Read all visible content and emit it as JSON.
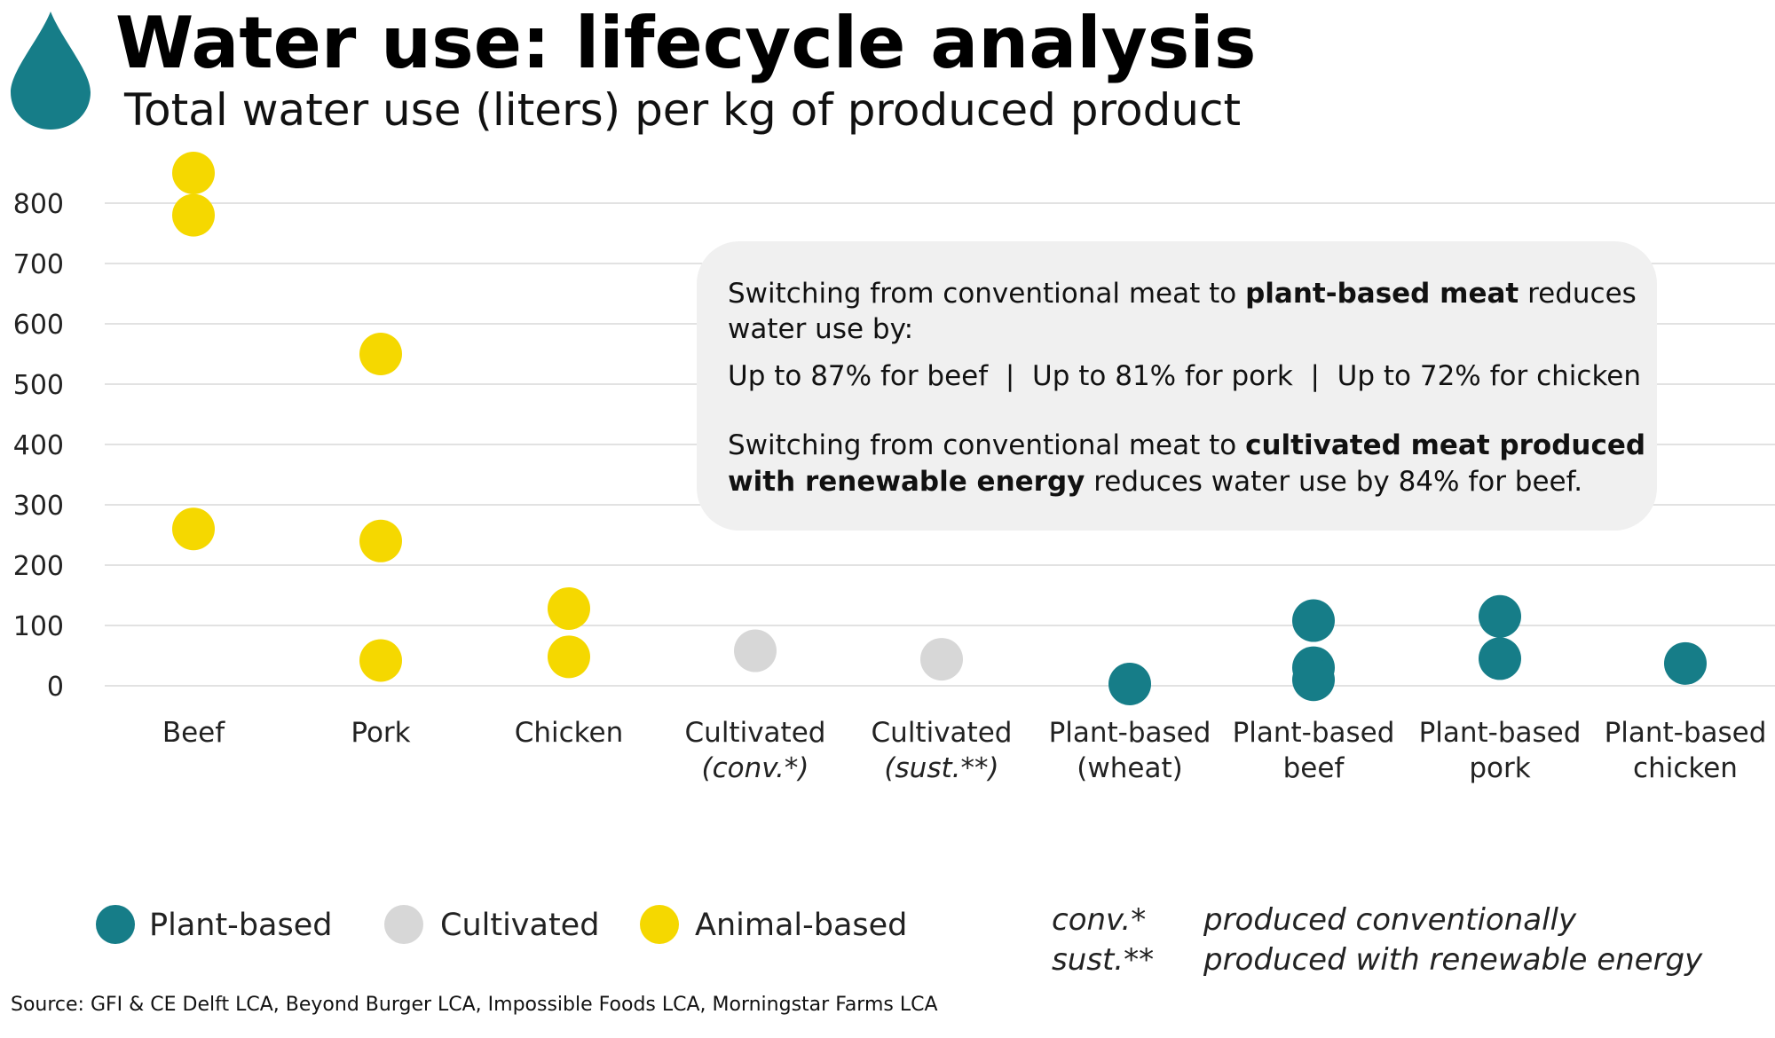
{
  "chart_data": {
    "type": "scatter",
    "title": "Water use: lifecycle analysis",
    "subtitle": "Total water use (liters) per kg of produced product",
    "ylabel": "",
    "xlabel": "",
    "ylim": [
      0,
      800
    ],
    "y_ticks": [
      0,
      100,
      200,
      300,
      400,
      500,
      600,
      700,
      800
    ],
    "grid": true,
    "categories": [
      {
        "line1": "Beef",
        "line2": "",
        "italic2": false
      },
      {
        "line1": "Pork",
        "line2": "",
        "italic2": false
      },
      {
        "line1": "Chicken",
        "line2": "",
        "italic2": false
      },
      {
        "line1": "Cultivated",
        "line2": "(conv.*)",
        "italic2": true
      },
      {
        "line1": "Cultivated",
        "line2": "(sust.**)",
        "italic2": true
      },
      {
        "line1": "Plant-based",
        "line2": "(wheat)",
        "italic2": false
      },
      {
        "line1": "Plant-based",
        "line2": "beef",
        "italic2": false
      },
      {
        "line1": "Plant-based",
        "line2": "pork",
        "italic2": false
      },
      {
        "line1": "Plant-based",
        "line2": "chicken",
        "italic2": false
      }
    ],
    "series": [
      {
        "name": "Animal-based",
        "color": "#f5d800",
        "points": [
          {
            "category": 0,
            "value": 850
          },
          {
            "category": 0,
            "value": 780
          },
          {
            "category": 0,
            "value": 260
          },
          {
            "category": 1,
            "value": 550
          },
          {
            "category": 1,
            "value": 240
          },
          {
            "category": 1,
            "value": 42
          },
          {
            "category": 2,
            "value": 128
          },
          {
            "category": 2,
            "value": 48
          }
        ]
      },
      {
        "name": "Cultivated",
        "color": "#d7d7d7",
        "points": [
          {
            "category": 3,
            "value": 58
          },
          {
            "category": 4,
            "value": 44
          }
        ]
      },
      {
        "name": "Plant-based",
        "color": "#167d88",
        "points": [
          {
            "category": 5,
            "value": 3
          },
          {
            "category": 6,
            "value": 108
          },
          {
            "category": 6,
            "value": 30
          },
          {
            "category": 6,
            "value": 10
          },
          {
            "category": 7,
            "value": 115
          },
          {
            "category": 7,
            "value": 45
          },
          {
            "category": 8,
            "value": 37
          }
        ]
      }
    ],
    "legend": [
      {
        "label": "Plant-based",
        "color": "#167d88"
      },
      {
        "label": "Cultivated",
        "color": "#d7d7d7"
      },
      {
        "label": "Animal-based",
        "color": "#f5d800"
      }
    ],
    "legend_position": "bottom-left",
    "callout": {
      "p1_pre": "Switching from conventional meat to ",
      "p1_bold": "plant-based meat",
      "p1_post": " reduces",
      "p1_line2": "water use by:",
      "p2": "Up to 87% for beef  |  Up to 81% for pork  |  Up to 72% for chicken",
      "p3_pre": "Switching from conventional meat to ",
      "p3_bold1": "cultivated meat produced",
      "p3_bold2": "with renewable energy",
      "p3_post": " reduces water use by 84% for beef."
    },
    "notes": [
      {
        "key": "conv.*",
        "text": "produced conventionally"
      },
      {
        "key": "sust.**",
        "text": "produced with renewable energy"
      }
    ],
    "source": "Source: GFI & CE Delft LCA, Beyond Burger LCA, Impossible Foods LCA, Morningstar Farms LCA"
  },
  "icon": "water-drop-icon",
  "colors": {
    "gridline": "#d9d9d9",
    "callout_bg": "#f0f0f0",
    "drop": "#167d88"
  }
}
